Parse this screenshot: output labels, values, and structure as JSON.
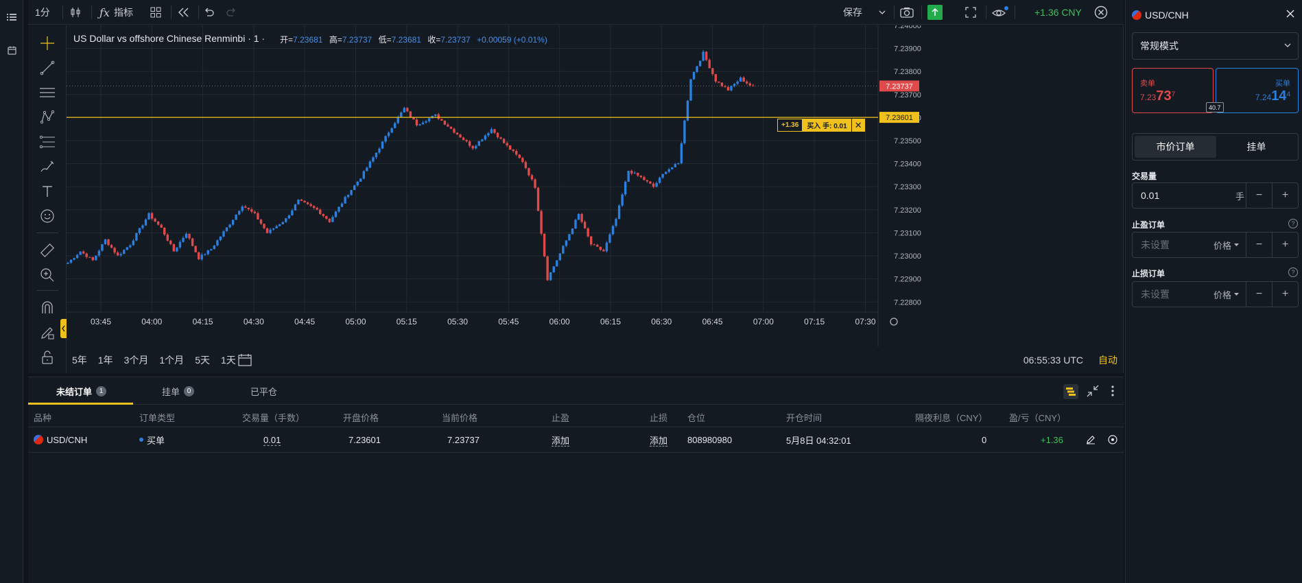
{
  "toolbar": {
    "interval": "1分",
    "indicators_label": "指标",
    "save_label": "保存",
    "pnl": "+1.36 CNY"
  },
  "chart": {
    "legend_title": "US Dollar vs offshore Chinese Renminbi · 1 ·",
    "ohlc": {
      "o_label": "开=",
      "o": "7.23681",
      "h_label": "高=",
      "h": "7.23737",
      "l_label": "低=",
      "l": "7.23681",
      "c_label": "收=",
      "c": "7.23737",
      "change": "+0.00059 (+0.01%)"
    },
    "order_tag": {
      "pnl": "+1.36",
      "text": "买入 手: 0.01"
    },
    "ranges": [
      "5年",
      "1年",
      "3个月",
      "1个月",
      "5天",
      "1天"
    ],
    "time_readout": "06:55:33 UTC",
    "auto_label": "自动",
    "colors": {
      "up": "#2a7fe0",
      "down": "#e04a4a",
      "order_line": "#f0c11c",
      "price_tag": "#e04a4a"
    }
  },
  "chart_data": {
    "type": "candlestick",
    "x_ticks": [
      "03:45",
      "04:00",
      "04:15",
      "04:30",
      "04:45",
      "05:00",
      "05:15",
      "05:30",
      "05:45",
      "06:00",
      "06:15",
      "06:30",
      "06:45",
      "07:00",
      "07:15",
      "07:30"
    ],
    "y_ticks": [
      "7.24000",
      "7.23900",
      "7.23800",
      "7.23700",
      "7.23600",
      "7.23500",
      "7.23400",
      "7.23300",
      "7.23200",
      "7.23100",
      "7.23000",
      "7.22900",
      "7.22800"
    ],
    "ylim": [
      7.2278,
      7.24
    ],
    "current_price": "7.23737",
    "order_price": "7.23601",
    "close_path": [
      [
        0,
        7.2297
      ],
      [
        4,
        7.2302
      ],
      [
        8,
        7.2298
      ],
      [
        12,
        7.2307
      ],
      [
        16,
        7.23
      ],
      [
        20,
        7.2305
      ],
      [
        26,
        7.2318
      ],
      [
        30,
        7.2312
      ],
      [
        34,
        7.2302
      ],
      [
        38,
        7.231
      ],
      [
        42,
        7.2299
      ],
      [
        46,
        7.2303
      ],
      [
        52,
        7.2314
      ],
      [
        56,
        7.2322
      ],
      [
        60,
        7.2318
      ],
      [
        64,
        7.231
      ],
      [
        70,
        7.2316
      ],
      [
        74,
        7.2324
      ],
      [
        80,
        7.232
      ],
      [
        84,
        7.2315
      ],
      [
        90,
        7.2327
      ],
      [
        94,
        7.2334
      ],
      [
        100,
        7.2347
      ],
      [
        104,
        7.2356
      ],
      [
        108,
        7.2364
      ],
      [
        112,
        7.2357
      ],
      [
        118,
        7.2361
      ],
      [
        124,
        7.2354
      ],
      [
        130,
        7.2347
      ],
      [
        136,
        7.2355
      ],
      [
        140,
        7.2349
      ],
      [
        146,
        7.2341
      ],
      [
        150,
        7.233
      ],
      [
        152,
        7.231
      ],
      [
        154,
        7.229
      ],
      [
        158,
        7.2301
      ],
      [
        164,
        7.2318
      ],
      [
        168,
        7.2305
      ],
      [
        172,
        7.2302
      ],
      [
        176,
        7.2316
      ],
      [
        180,
        7.2337
      ],
      [
        184,
        7.2334
      ],
      [
        188,
        7.233
      ],
      [
        192,
        7.2337
      ],
      [
        196,
        7.234
      ],
      [
        200,
        7.2377
      ],
      [
        204,
        7.2388
      ],
      [
        208,
        7.2376
      ],
      [
        212,
        7.2372
      ],
      [
        216,
        7.2377
      ],
      [
        220,
        7.2373
      ]
    ]
  },
  "bottom": {
    "tabs": [
      {
        "label": "未结订单",
        "count": "1"
      },
      {
        "label": "挂单",
        "count": "0"
      },
      {
        "label": "已平仓",
        "count": ""
      }
    ],
    "headers": [
      "品种",
      "订单类型",
      "交易量（手数）",
      "开盘价格",
      "当前价格",
      "止盈",
      "止损",
      "仓位",
      "开仓时间",
      "隔夜利息（CNY）",
      "盈/亏（CNY）"
    ],
    "rows": [
      {
        "symbol": "USD/CNH",
        "type": "买单",
        "volume": "0.01",
        "open_price": "7.23601",
        "current_price": "7.23737",
        "take_profit": "添加",
        "stop_loss": "添加",
        "position": "808980980",
        "open_time": "5月8日 04:32:01",
        "swap": "0",
        "pnl": "+1.36"
      }
    ]
  },
  "right": {
    "symbol": "USD/CNH",
    "mode": "常规模式",
    "sell_label": "卖单",
    "sell_price_prefix": "7.23",
    "sell_price_big": "73",
    "sell_price_sup": "7",
    "buy_label": "买单",
    "buy_price_prefix": "7.24",
    "buy_price_big": "14",
    "buy_price_sup": "4",
    "spread": "40.7",
    "order_tabs": [
      "市价订单",
      "挂单"
    ],
    "volume_label": "交易量",
    "volume_value": "0.01",
    "volume_unit": "手",
    "tp_label": "止盈订单",
    "sl_label": "止损订单",
    "unset_placeholder": "未设置",
    "price_label": "价格"
  }
}
